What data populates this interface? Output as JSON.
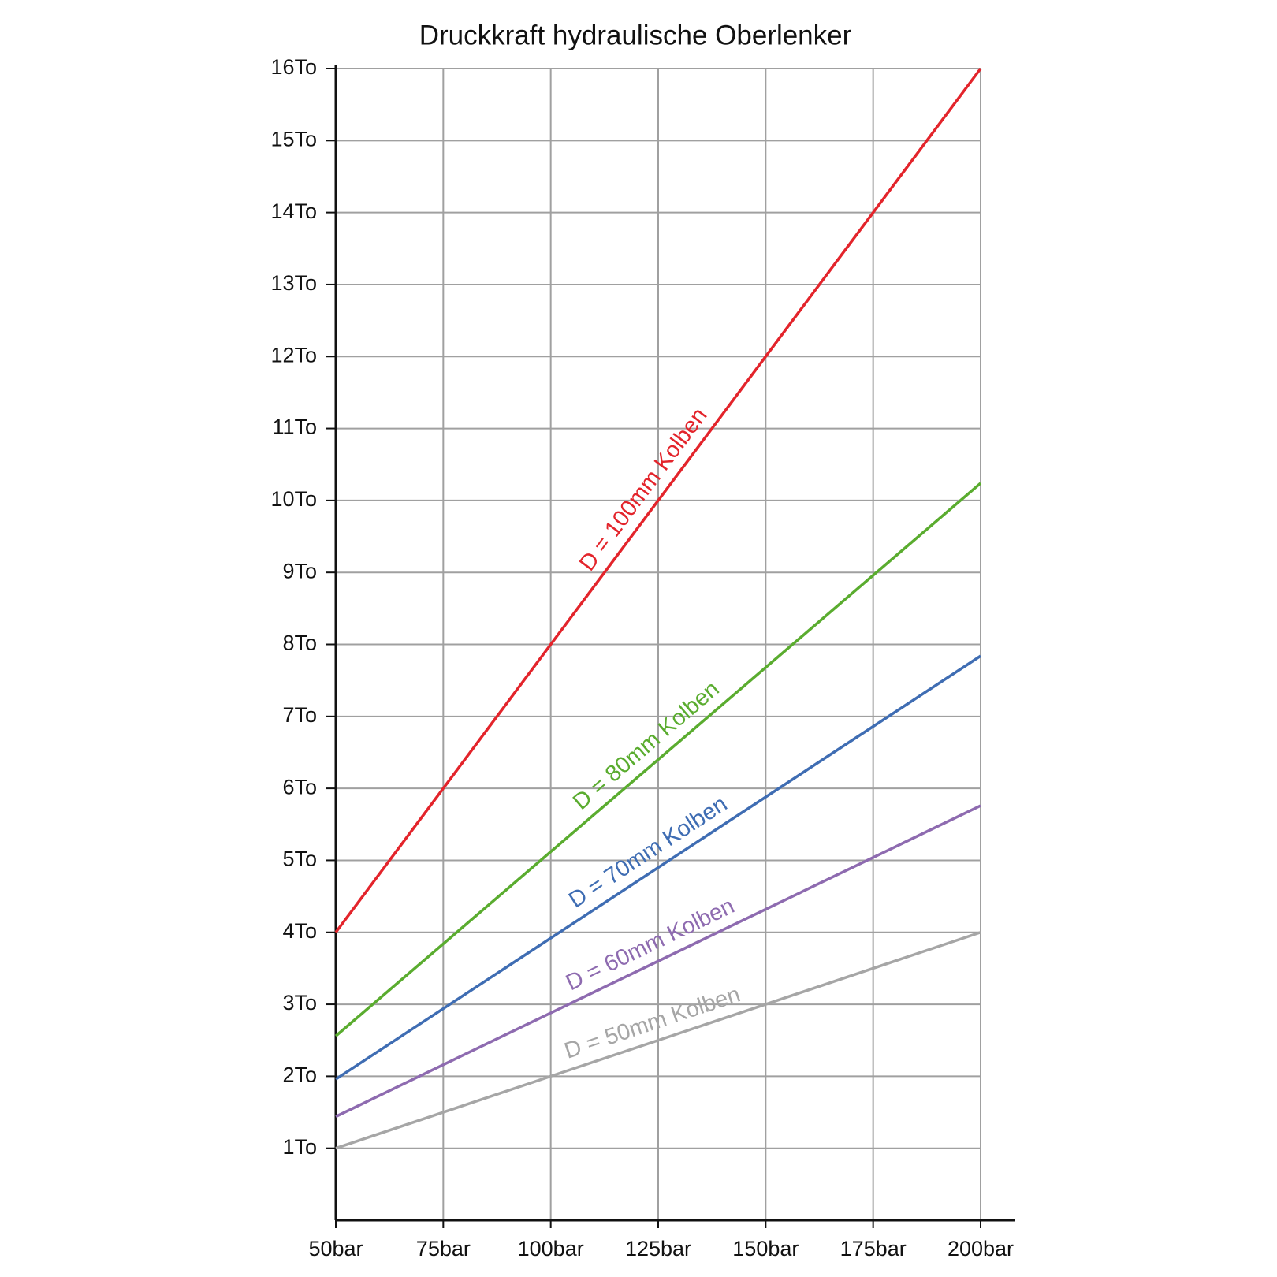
{
  "chart_data": {
    "type": "line",
    "title": "Druckkraft hydraulische Oberlenker",
    "x": [
      50,
      200
    ],
    "series": [
      {
        "name": "D = 100mm Kolben",
        "color": "#e3242b",
        "values": [
          4,
          16
        ]
      },
      {
        "name": "D = 80mm Kolben",
        "color": "#5aac2f",
        "values": [
          2.56,
          10.24
        ]
      },
      {
        "name": "D = 70mm Kolben",
        "color": "#3f6db3",
        "values": [
          1.96,
          7.84
        ]
      },
      {
        "name": "D = 60mm Kolben",
        "color": "#8e6bb0",
        "values": [
          1.44,
          5.76
        ]
      },
      {
        "name": "D = 50mm Kolben",
        "color": "#a6a6a6",
        "values": [
          1,
          4
        ]
      }
    ],
    "xlim": [
      50,
      200
    ],
    "xticks": [
      {
        "value": 50,
        "label": "50bar"
      },
      {
        "value": 75,
        "label": "75bar"
      },
      {
        "value": 100,
        "label": "100bar"
      },
      {
        "value": 125,
        "label": "125bar"
      },
      {
        "value": 150,
        "label": "150bar"
      },
      {
        "value": 175,
        "label": "175bar"
      },
      {
        "value": 200,
        "label": "200bar"
      }
    ],
    "ylim": [
      0,
      16
    ],
    "yticks": [
      {
        "value": 1,
        "label": "1To"
      },
      {
        "value": 2,
        "label": "2To"
      },
      {
        "value": 3,
        "label": "3To"
      },
      {
        "value": 4,
        "label": "4To"
      },
      {
        "value": 5,
        "label": "5To"
      },
      {
        "value": 6,
        "label": "6To"
      },
      {
        "value": 7,
        "label": "7To"
      },
      {
        "value": 8,
        "label": "8To"
      },
      {
        "value": 9,
        "label": "9To"
      },
      {
        "value": 10,
        "label": "10To"
      },
      {
        "value": 11,
        "label": "11To"
      },
      {
        "value": 12,
        "label": "12To"
      },
      {
        "value": 13,
        "label": "13To"
      },
      {
        "value": 14,
        "label": "14To"
      },
      {
        "value": 15,
        "label": "15To"
      },
      {
        "value": 16,
        "label": "16To"
      }
    ],
    "grid": true
  }
}
